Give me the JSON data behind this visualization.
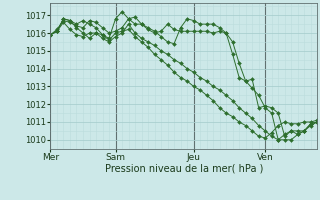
{
  "bg_color": "#cce8e8",
  "grid_color_major": "#aacfcf",
  "grid_color_minor": "#bbdddd",
  "line_color": "#2d6e2d",
  "xlabel": "Pression niveau de la mer( hPa )",
  "ylim": [
    1009.5,
    1017.7
  ],
  "yticks": [
    1010,
    1011,
    1012,
    1013,
    1014,
    1015,
    1016,
    1017
  ],
  "day_labels": [
    "Mer",
    "Sam",
    "Jeu",
    "Ven"
  ],
  "day_positions": [
    0,
    10,
    22,
    33
  ],
  "total_points": 42,
  "series": [
    [
      1015.9,
      1016.1,
      1016.6,
      1016.2,
      1015.9,
      1015.8,
      1016.0,
      1016.0,
      1015.9,
      1015.6,
      1016.0,
      1016.1,
      1016.2,
      1015.8,
      1015.5,
      1015.2,
      1014.8,
      1014.5,
      1014.2,
      1013.8,
      1013.5,
      1013.3,
      1013.0,
      1012.8,
      1012.5,
      1012.2,
      1011.8,
      1011.5,
      1011.3,
      1011.0,
      1010.8,
      1010.5,
      1010.2,
      1010.1,
      1010.4,
      1010.8,
      1011.0,
      1010.9,
      1010.9,
      1011.0,
      1011.0,
      1011.1
    ],
    [
      1015.9,
      1016.2,
      1016.7,
      1016.6,
      1016.4,
      1016.3,
      1016.7,
      1016.6,
      1016.3,
      1016.0,
      1016.1,
      1016.3,
      1016.8,
      1016.9,
      1016.5,
      1016.2,
      1016.0,
      1016.1,
      1016.5,
      1016.2,
      1016.1,
      1016.1,
      1016.1,
      1016.1,
      1016.1,
      1016.0,
      1016.1,
      1016.0,
      1014.8,
      1013.5,
      1013.3,
      1013.4,
      1011.8,
      1011.9,
      1011.8,
      1011.5,
      1010.2,
      1010.5,
      1010.3,
      1010.5,
      1010.9,
      1011.0
    ],
    [
      1015.9,
      1016.1,
      1016.8,
      1016.7,
      1016.5,
      1016.7,
      1016.5,
      1016.3,
      1015.9,
      1015.7,
      1016.8,
      1017.2,
      1016.8,
      1016.5,
      1016.5,
      1016.3,
      1016.1,
      1015.8,
      1015.5,
      1015.4,
      1016.3,
      1016.8,
      1016.7,
      1016.5,
      1016.5,
      1016.5,
      1016.3,
      1016.0,
      1015.5,
      1014.3,
      1013.3,
      1012.9,
      1012.5,
      1011.8,
      1011.5,
      1010.0,
      1010.3,
      1010.5,
      1010.5,
      1010.5,
      1010.9,
      1011.0
    ],
    [
      1015.9,
      1016.1,
      1016.8,
      1016.7,
      1016.3,
      1016.0,
      1015.7,
      1016.0,
      1015.7,
      1015.5,
      1015.8,
      1016.0,
      1016.5,
      1016.0,
      1015.7,
      1015.5,
      1015.3,
      1015.0,
      1014.8,
      1014.5,
      1014.3,
      1014.0,
      1013.8,
      1013.5,
      1013.3,
      1013.0,
      1012.8,
      1012.5,
      1012.2,
      1011.8,
      1011.5,
      1011.2,
      1010.8,
      1010.5,
      1010.2,
      1010.0,
      1010.0,
      1010.0,
      1010.3,
      1010.5,
      1010.8,
      1011.0
    ]
  ]
}
